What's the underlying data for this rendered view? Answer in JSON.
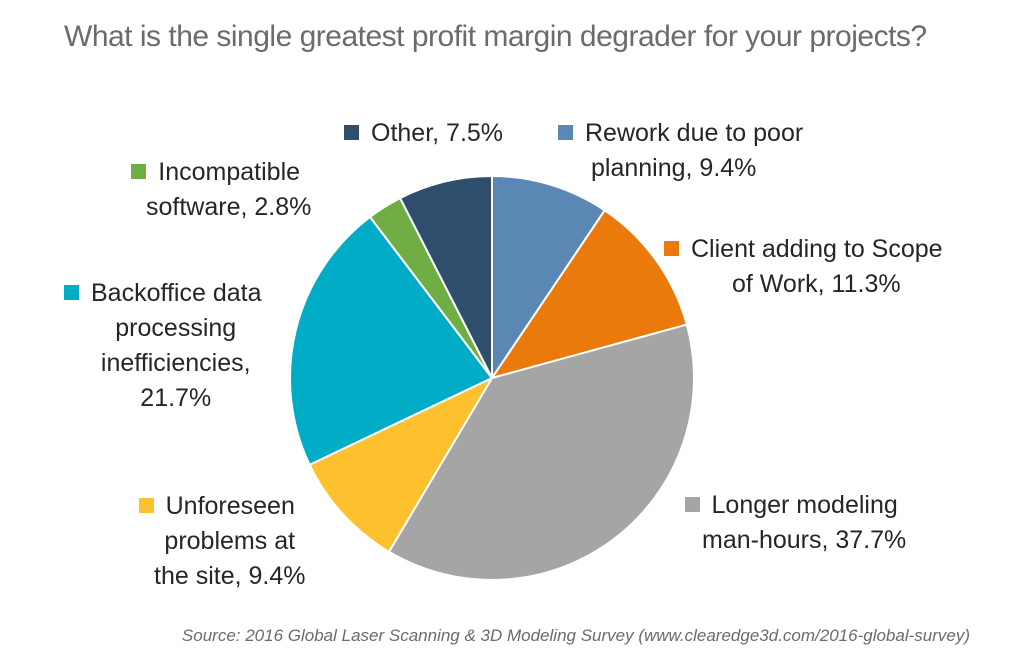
{
  "title": "What is the single greatest profit margin degrader for your projects?",
  "source": "Source: 2016 Global Laser Scanning & 3D Modeling Survey (www.clearedge3d.com/2016-global-survey)",
  "chart_data": {
    "type": "pie",
    "unit": "%",
    "start_angle_deg": 0,
    "direction": "clockwise",
    "slices": [
      {
        "label_lines": [
          "Rework due to poor",
          "planning, 9.4%"
        ],
        "value": 9.4,
        "color": "#5b87b5"
      },
      {
        "label_lines": [
          "Client adding to Scope",
          "of Work, 11.3%"
        ],
        "value": 11.3,
        "color": "#ea7a0c"
      },
      {
        "label_lines": [
          "Longer modeling",
          "man-hours, 37.7%"
        ],
        "value": 37.7,
        "color": "#a5a5a5"
      },
      {
        "label_lines": [
          "Unforeseen",
          "problems at",
          "the site, 9.4%"
        ],
        "value": 9.4,
        "color": "#fcc12d"
      },
      {
        "label_lines": [
          "Backoffice data",
          "processing",
          "inefficiencies,",
          "21.7%"
        ],
        "value": 21.7,
        "color": "#01acc7"
      },
      {
        "label_lines": [
          "Incompatible",
          "software, 2.8%"
        ],
        "value": 2.8,
        "color": "#6fae45"
      },
      {
        "label_lines": [
          "Other, 7.5%"
        ],
        "value": 7.5,
        "color": "#2f4e6d"
      }
    ]
  }
}
